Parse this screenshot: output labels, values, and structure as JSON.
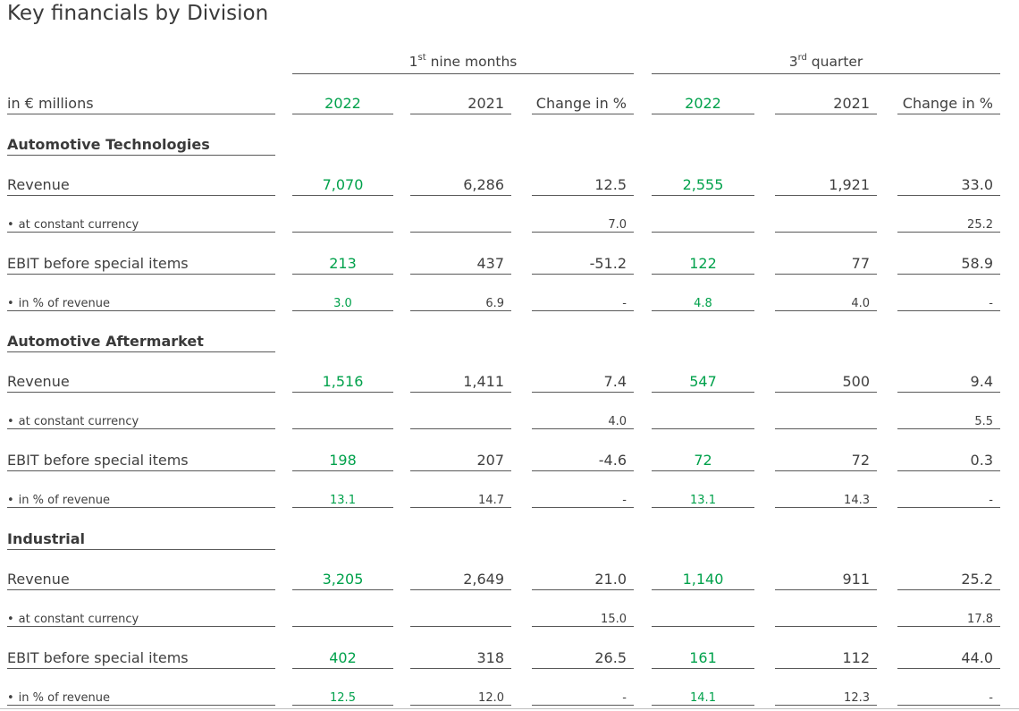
{
  "title": "Key financials by Division",
  "header": {
    "group1_main": "1",
    "group1_sup": "st",
    "group1_rest": " nine months",
    "group2_main": "3",
    "group2_sup": "rd",
    "group2_rest": " quarter",
    "unit_label": "in € millions",
    "columns": [
      "2022",
      "2021",
      "Change in %",
      "2022",
      "2021",
      "Change in %"
    ]
  },
  "sections": [
    {
      "name": "Automotive Technologies",
      "rows": [
        {
          "label": "Revenue",
          "kind": "main",
          "values": [
            "7,070",
            "6,286",
            "12.5",
            "2,555",
            "1,921",
            "33.0"
          ]
        },
        {
          "label": "at constant currency",
          "kind": "sub",
          "values": [
            "",
            "",
            "7.0",
            "",
            "",
            "25.2"
          ]
        },
        {
          "label": "EBIT before special items",
          "kind": "main",
          "values": [
            "213",
            "437",
            "-51.2",
            "122",
            "77",
            "58.9"
          ]
        },
        {
          "label": "in % of revenue",
          "kind": "sub",
          "values": [
            "3.0",
            "6.9",
            "-",
            "4.8",
            "4.0",
            "-"
          ]
        }
      ]
    },
    {
      "name": "Automotive Aftermarket",
      "rows": [
        {
          "label": "Revenue",
          "kind": "main",
          "values": [
            "1,516",
            "1,411",
            "7.4",
            "547",
            "500",
            "9.4"
          ]
        },
        {
          "label": "at constant currency",
          "kind": "sub",
          "values": [
            "",
            "",
            "4.0",
            "",
            "",
            "5.5"
          ]
        },
        {
          "label": "EBIT before special items",
          "kind": "main",
          "values": [
            "198",
            "207",
            "-4.6",
            "72",
            "72",
            "0.3"
          ]
        },
        {
          "label": "in % of revenue",
          "kind": "sub",
          "values": [
            "13.1",
            "14.7",
            "-",
            "13.1",
            "14.3",
            "-"
          ]
        }
      ]
    },
    {
      "name": "Industrial",
      "rows": [
        {
          "label": "Revenue",
          "kind": "main",
          "values": [
            "3,205",
            "2,649",
            "21.0",
            "1,140",
            "911",
            "25.2"
          ]
        },
        {
          "label": "at constant currency",
          "kind": "sub",
          "values": [
            "",
            "",
            "15.0",
            "",
            "",
            "17.8"
          ]
        },
        {
          "label": "EBIT before special items",
          "kind": "main",
          "values": [
            "402",
            "318",
            "26.5",
            "161",
            "112",
            "44.0"
          ]
        },
        {
          "label": "in % of revenue",
          "kind": "sub",
          "values": [
            "12.5",
            "12.0",
            "-",
            "14.1",
            "12.3",
            "-"
          ]
        }
      ]
    }
  ],
  "colors": {
    "highlight": "#00a14b",
    "text": "#404040",
    "rule": "#595959"
  }
}
